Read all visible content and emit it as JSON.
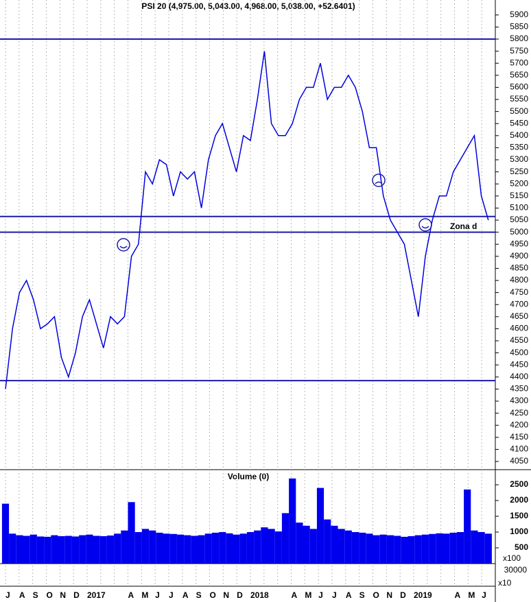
{
  "chart_data": [
    {
      "type": "line",
      "title": "PSI 20 (4,975.00, 5,043.00, 4,968.00, 5,038.00, +52.6401)",
      "color": "#0000dd",
      "values": [
        4350,
        4600,
        4750,
        4800,
        4720,
        4600,
        4620,
        4650,
        4480,
        4400,
        4500,
        4650,
        4720,
        4620,
        4520,
        4650,
        4620,
        4650,
        4900,
        4950,
        5250,
        5200,
        5300,
        5280,
        5150,
        5250,
        5220,
        5250,
        5100,
        5300,
        5400,
        5450,
        5350,
        5250,
        5400,
        5380,
        5550,
        5750,
        5450,
        5400,
        5400,
        5450,
        5550,
        5600,
        5600,
        5700,
        5550,
        5600,
        5600,
        5650,
        5600,
        5500,
        5350,
        5350,
        5150,
        5050,
        5000,
        4950,
        4800,
        4650,
        4900,
        5050,
        5150,
        5150,
        5250,
        5300,
        5350,
        5400,
        5150,
        5050
      ],
      "ylim": [
        4016,
        5962
      ],
      "yticks": [
        4050,
        4100,
        4150,
        4200,
        4250,
        4300,
        4350,
        4400,
        4450,
        4500,
        4550,
        4600,
        4650,
        4700,
        4750,
        4800,
        4850,
        4900,
        4950,
        5000,
        5050,
        5100,
        5150,
        5200,
        5250,
        5300,
        5350,
        5400,
        5450,
        5500,
        5550,
        5600,
        5650,
        5700,
        5750,
        5800,
        5850,
        5900
      ],
      "hlines": [
        5800,
        5065,
        5000,
        4385
      ],
      "hline_color": "#1a1aa8",
      "annotations": [
        "Zona d"
      ],
      "grid": true
    },
    {
      "type": "bar",
      "title": "Volume (0)",
      "color": "#0000ee",
      "values": [
        1900,
        950,
        900,
        880,
        920,
        860,
        850,
        900,
        870,
        880,
        860,
        900,
        920,
        880,
        870,
        890,
        950,
        1050,
        1950,
        1000,
        1100,
        1050,
        980,
        950,
        940,
        920,
        900,
        880,
        900,
        950,
        980,
        1000,
        960,
        920,
        950,
        1000,
        1050,
        1150,
        1100,
        1020,
        1600,
        2700,
        1300,
        1200,
        1100,
        2400,
        1400,
        1200,
        1100,
        1050,
        1000,
        980,
        950,
        900,
        920,
        900,
        880,
        850,
        870,
        900,
        920,
        940,
        960,
        950,
        980,
        1000,
        2350,
        1050,
        1000,
        950
      ],
      "ylim": [
        0,
        2957
      ],
      "yticks": [
        500,
        1000,
        1500,
        2000,
        2500
      ],
      "annotations": [
        "x100",
        "30000",
        "x10"
      ],
      "xtick_labels": [
        "J",
        "A",
        "S",
        "O",
        "N",
        "D",
        "2017",
        null,
        null,
        "A",
        "M",
        "J",
        "J",
        "A",
        "S",
        "O",
        "N",
        "D",
        "2018",
        null,
        null,
        "A",
        "M",
        "J",
        "J",
        "A",
        "S",
        "O",
        "N",
        "D",
        "2019",
        null,
        null,
        "A",
        "M",
        "J"
      ],
      "grid": true
    }
  ]
}
